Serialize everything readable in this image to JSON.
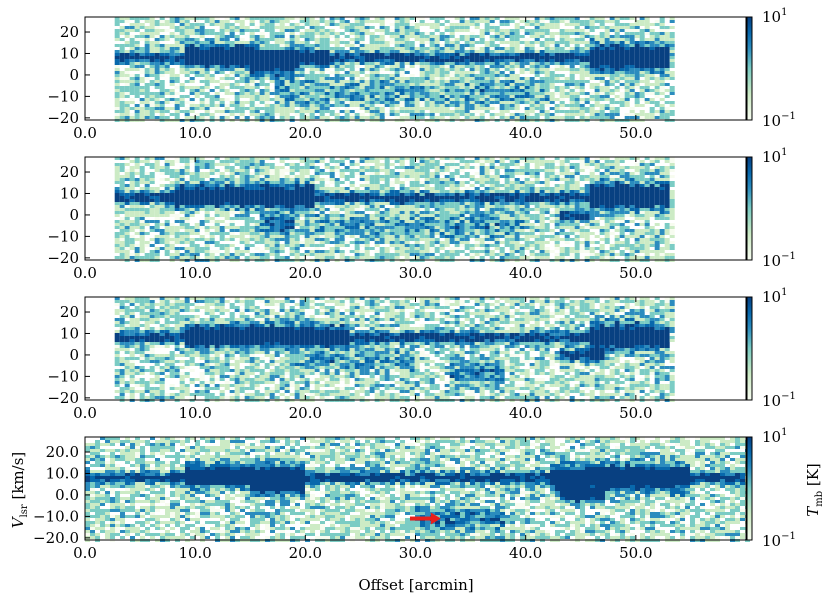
{
  "chart_data": [
    {
      "type": "heatmap",
      "xlabel": "",
      "ylabel": "",
      "x_range": [
        0,
        60
      ],
      "y_range": [
        -21,
        27
      ],
      "x_ticks": [
        "0.0",
        "10.0",
        "20.0",
        "30.0",
        "40.0",
        "50.0"
      ],
      "y_ticks": [
        "20",
        "10",
        "0",
        "-10",
        "-20"
      ],
      "data_extent_x": [
        2.7,
        53.3
      ],
      "colorbar": {
        "scale": "log",
        "min": 0.1,
        "max": 10,
        "ticks": [
          "10¹",
          "10⁻¹"
        ]
      },
      "features": [
        {
          "x0": 2.7,
          "x1": 53.3,
          "v": 8,
          "width": 2.5,
          "intensity": 0.85
        },
        {
          "x0": 9.0,
          "x1": 16.0,
          "v": 9,
          "width": 5,
          "intensity": 1.0
        },
        {
          "x0": 16.0,
          "x1": 22.0,
          "v": 8,
          "width": 4,
          "intensity": 0.9
        },
        {
          "x0": 46.0,
          "x1": 53.3,
          "v": 8,
          "width": 6,
          "intensity": 1.0
        },
        {
          "x0": 15.0,
          "x1": 19.0,
          "v": 3,
          "width": 4,
          "intensity": 0.55
        },
        {
          "x0": 17.0,
          "x1": 42.0,
          "v": -8,
          "width": 6,
          "intensity": 0.3
        }
      ]
    },
    {
      "type": "heatmap",
      "xlabel": "",
      "ylabel": "",
      "x_range": [
        0,
        60
      ],
      "y_range": [
        -21,
        27
      ],
      "x_ticks": [
        "0.0",
        "10.0",
        "20.0",
        "30.0",
        "40.0",
        "50.0"
      ],
      "y_ticks": [
        "20",
        "10",
        "0",
        "-10",
        "-20"
      ],
      "data_extent_x": [
        2.7,
        53.3
      ],
      "colorbar": {
        "scale": "log",
        "min": 0.1,
        "max": 10,
        "ticks": [
          "10¹",
          "10⁻¹"
        ]
      },
      "features": [
        {
          "x0": 2.7,
          "x1": 53.3,
          "v": 8,
          "width": 2.5,
          "intensity": 0.85
        },
        {
          "x0": 8.0,
          "x1": 21.0,
          "v": 9,
          "width": 5,
          "intensity": 1.0
        },
        {
          "x0": 46.0,
          "x1": 53.3,
          "v": 9,
          "width": 6,
          "intensity": 1.0
        },
        {
          "x0": 43.0,
          "x1": 46.0,
          "v": 0,
          "width": 3,
          "intensity": 0.85
        },
        {
          "x0": 16.0,
          "x1": 19.0,
          "v": -4,
          "width": 6,
          "intensity": 0.5
        },
        {
          "x0": 20.0,
          "x1": 40.0,
          "v": -5,
          "width": 6,
          "intensity": 0.3
        }
      ]
    },
    {
      "type": "heatmap",
      "xlabel": "",
      "ylabel": "",
      "x_range": [
        0,
        60
      ],
      "y_range": [
        -21,
        27
      ],
      "x_ticks": [
        "0.0",
        "10.0",
        "20.0",
        "30.0",
        "40.0",
        "50.0"
      ],
      "y_ticks": [
        "20",
        "10",
        "0",
        "-10",
        "-20"
      ],
      "data_extent_x": [
        2.7,
        53.3
      ],
      "colorbar": {
        "scale": "log",
        "min": 0.1,
        "max": 10,
        "ticks": [
          "10¹",
          "10⁻¹"
        ]
      },
      "features": [
        {
          "x0": 2.7,
          "x1": 53.3,
          "v": 8,
          "width": 2.5,
          "intensity": 0.85
        },
        {
          "x0": 9.0,
          "x1": 24.0,
          "v": 9,
          "width": 5,
          "intensity": 1.0
        },
        {
          "x0": 46.0,
          "x1": 53.3,
          "v": 9,
          "width": 6,
          "intensity": 1.0
        },
        {
          "x0": 43.0,
          "x1": 47.0,
          "v": 0,
          "width": 3,
          "intensity": 0.85
        },
        {
          "x0": 18.0,
          "x1": 30.0,
          "v": -3,
          "width": 5,
          "intensity": 0.3
        },
        {
          "x0": 33.0,
          "x1": 38.0,
          "v": -8,
          "width": 5,
          "intensity": 0.45
        }
      ]
    },
    {
      "type": "heatmap",
      "xlabel": "Offset [arcmin]",
      "ylabel": "V_lsr [km/s]",
      "x_range": [
        0,
        60
      ],
      "y_range": [
        -21,
        27
      ],
      "x_ticks": [
        "0.0",
        "10.0",
        "20.0",
        "30.0",
        "40.0",
        "50.0"
      ],
      "y_ticks": [
        "20.0",
        "10.0",
        "0.0",
        "-10.0",
        "-20.0"
      ],
      "data_extent_x": [
        0,
        60
      ],
      "colorbar": {
        "scale": "log",
        "min": 0.1,
        "max": 10,
        "ticks": [
          "10¹",
          "10⁻¹"
        ],
        "label": "T_mb [K]"
      },
      "features": [
        {
          "x0": 0,
          "x1": 60,
          "v": 8,
          "width": 2.5,
          "intensity": 0.85
        },
        {
          "x0": 9.0,
          "x1": 20.0,
          "v": 9,
          "width": 5,
          "intensity": 1.0
        },
        {
          "x0": 42.0,
          "x1": 55.0,
          "v": 8,
          "width": 6,
          "intensity": 1.0
        },
        {
          "x0": 43.0,
          "x1": 47.0,
          "v": 0,
          "width": 3,
          "intensity": 0.85
        },
        {
          "x0": 15.0,
          "x1": 20.0,
          "v": 3,
          "width": 4,
          "intensity": 0.55
        },
        {
          "x0": 30.0,
          "x1": 38.0,
          "v": -11,
          "width": 5,
          "intensity": 0.45
        }
      ],
      "annotation": {
        "type": "arrow",
        "color": "#e8201c",
        "x_from": 29.5,
        "x_to": 32.3,
        "y": -11
      }
    }
  ],
  "labels": {
    "xlabel": "Offset [arcmin]",
    "ylabel_main": "V",
    "ylabel_sub": "lsr",
    "ylabel_unit": " [km/s]",
    "cbar_main": "T",
    "cbar_sub": "mb",
    "cbar_unit": " [K]",
    "cbar_top_base": "10",
    "cbar_top_exp": "1",
    "cbar_bot_base": "10",
    "cbar_bot_exp": "−1"
  },
  "colors": {
    "colormap": [
      "#f7fcf0",
      "#ccebc5",
      "#7bccc4",
      "#2b8cbe",
      "#0868ac",
      "#084081"
    ],
    "arrow": "#e8201c"
  }
}
